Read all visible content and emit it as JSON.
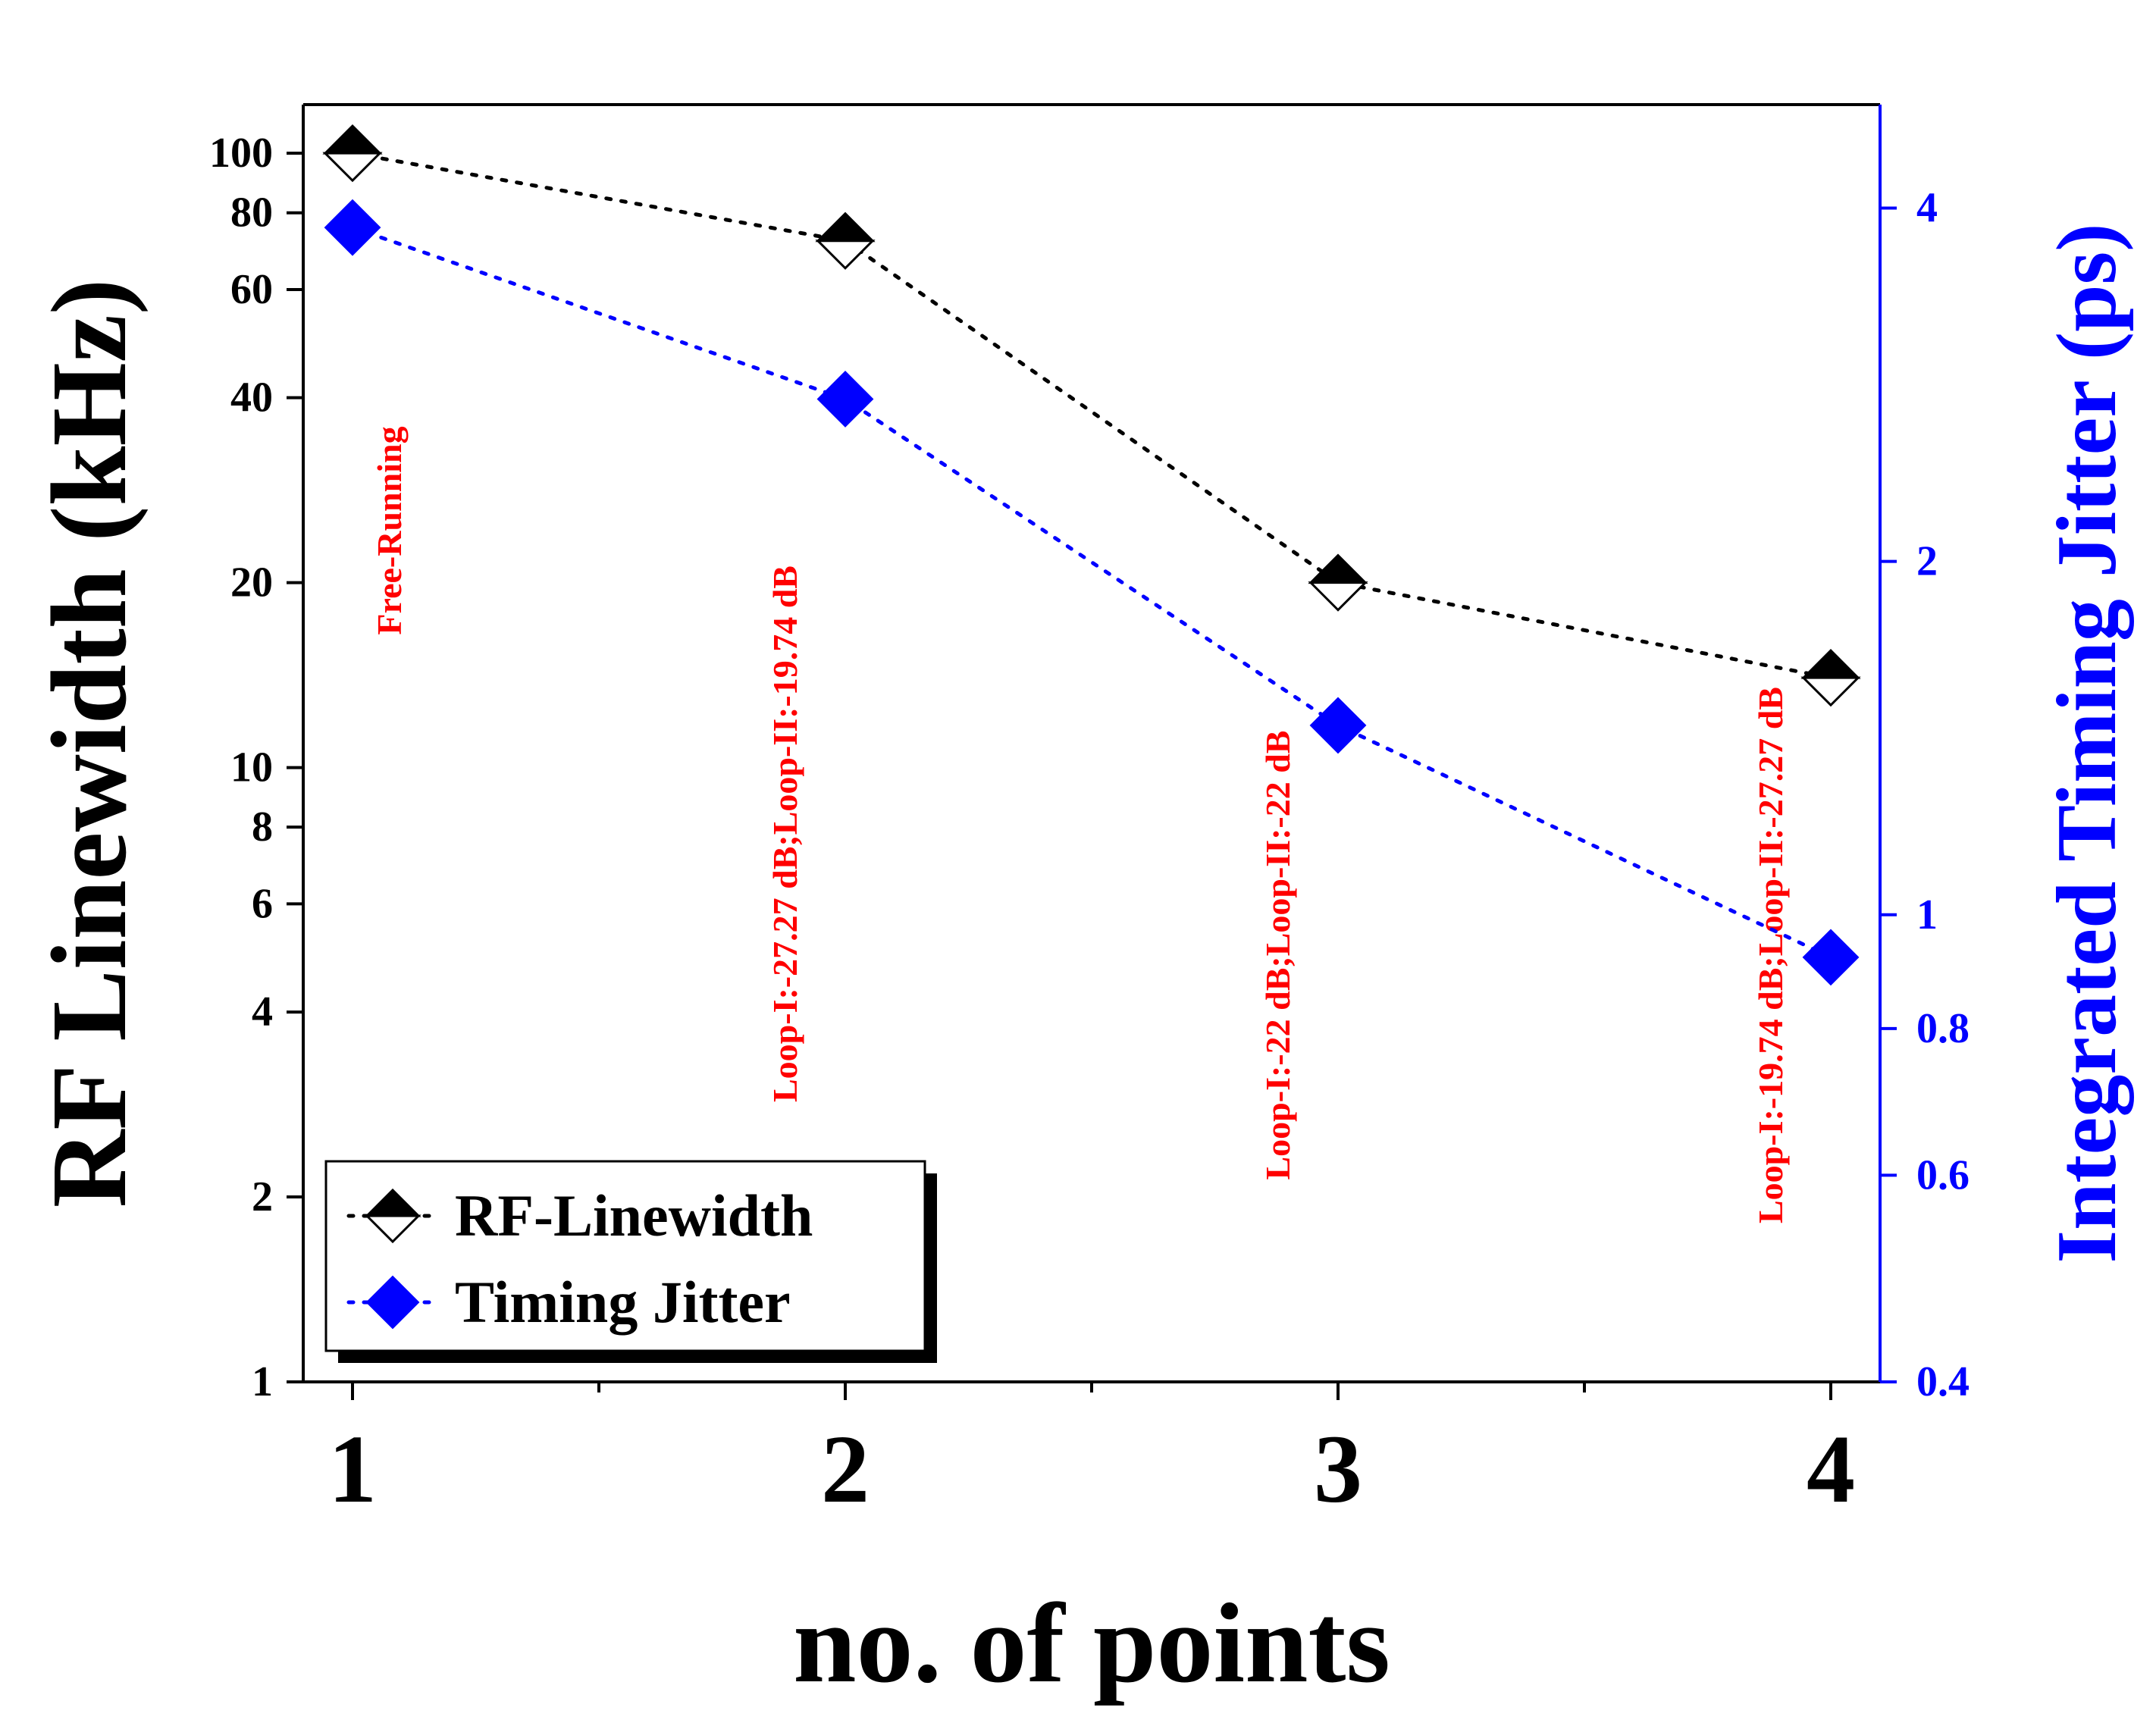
{
  "chart_data": {
    "type": "line",
    "x": [
      1,
      2,
      3,
      4
    ],
    "xlabel": "no. of points",
    "xlim": [
      0.9,
      4.1
    ],
    "x_ticks": [
      "1",
      "2",
      "3",
      "4"
    ],
    "ylabel": "RF Linewidth (kHz)",
    "yscale": "log",
    "ylim": [
      1,
      120
    ],
    "y_ticks": [
      "1",
      "2",
      "4",
      "6",
      "8",
      "10",
      "20",
      "40",
      "60",
      "80",
      "100"
    ],
    "y2label": "Integrated Timing Jitter (ps)",
    "y2scale": "log",
    "y2lim": [
      0.4,
      4.9
    ],
    "y2_ticks": [
      "0.4",
      "0.6",
      "0.8",
      "1",
      "2",
      "4"
    ],
    "series": [
      {
        "name": "RF-Linewidth",
        "axis": "left",
        "values": [
          100,
          72,
          20,
          14
        ],
        "color": "#000000",
        "marker": "half-filled-diamond",
        "line": "dotted"
      },
      {
        "name": "Timing Jitter",
        "axis": "right",
        "values": [
          3.85,
          2.75,
          1.45,
          0.92
        ],
        "color": "#0000ff",
        "marker": "filled-diamond",
        "line": "dotted"
      }
    ],
    "annotations": [
      {
        "x": 1,
        "text": "Free-Running",
        "color": "#ff0000"
      },
      {
        "x": 2,
        "text": "Loop-I:-27.27 dB;Loop-II:-19.74 dB",
        "color": "#ff0000"
      },
      {
        "x": 3,
        "text": "Loop-I:-22 dB;Loop-II:-22 dB",
        "color": "#ff0000"
      },
      {
        "x": 4,
        "text": "Loop-I:-19.74 dB;Loop-II:-27.27 dB",
        "color": "#ff0000"
      }
    ],
    "legend": {
      "placement": "bottom-left",
      "entries": [
        "RF-Linewidth",
        "Timing Jitter"
      ]
    },
    "colors": {
      "left_axis": "#000000",
      "right_axis": "#0000ff",
      "annotation": "#ff0000"
    }
  }
}
